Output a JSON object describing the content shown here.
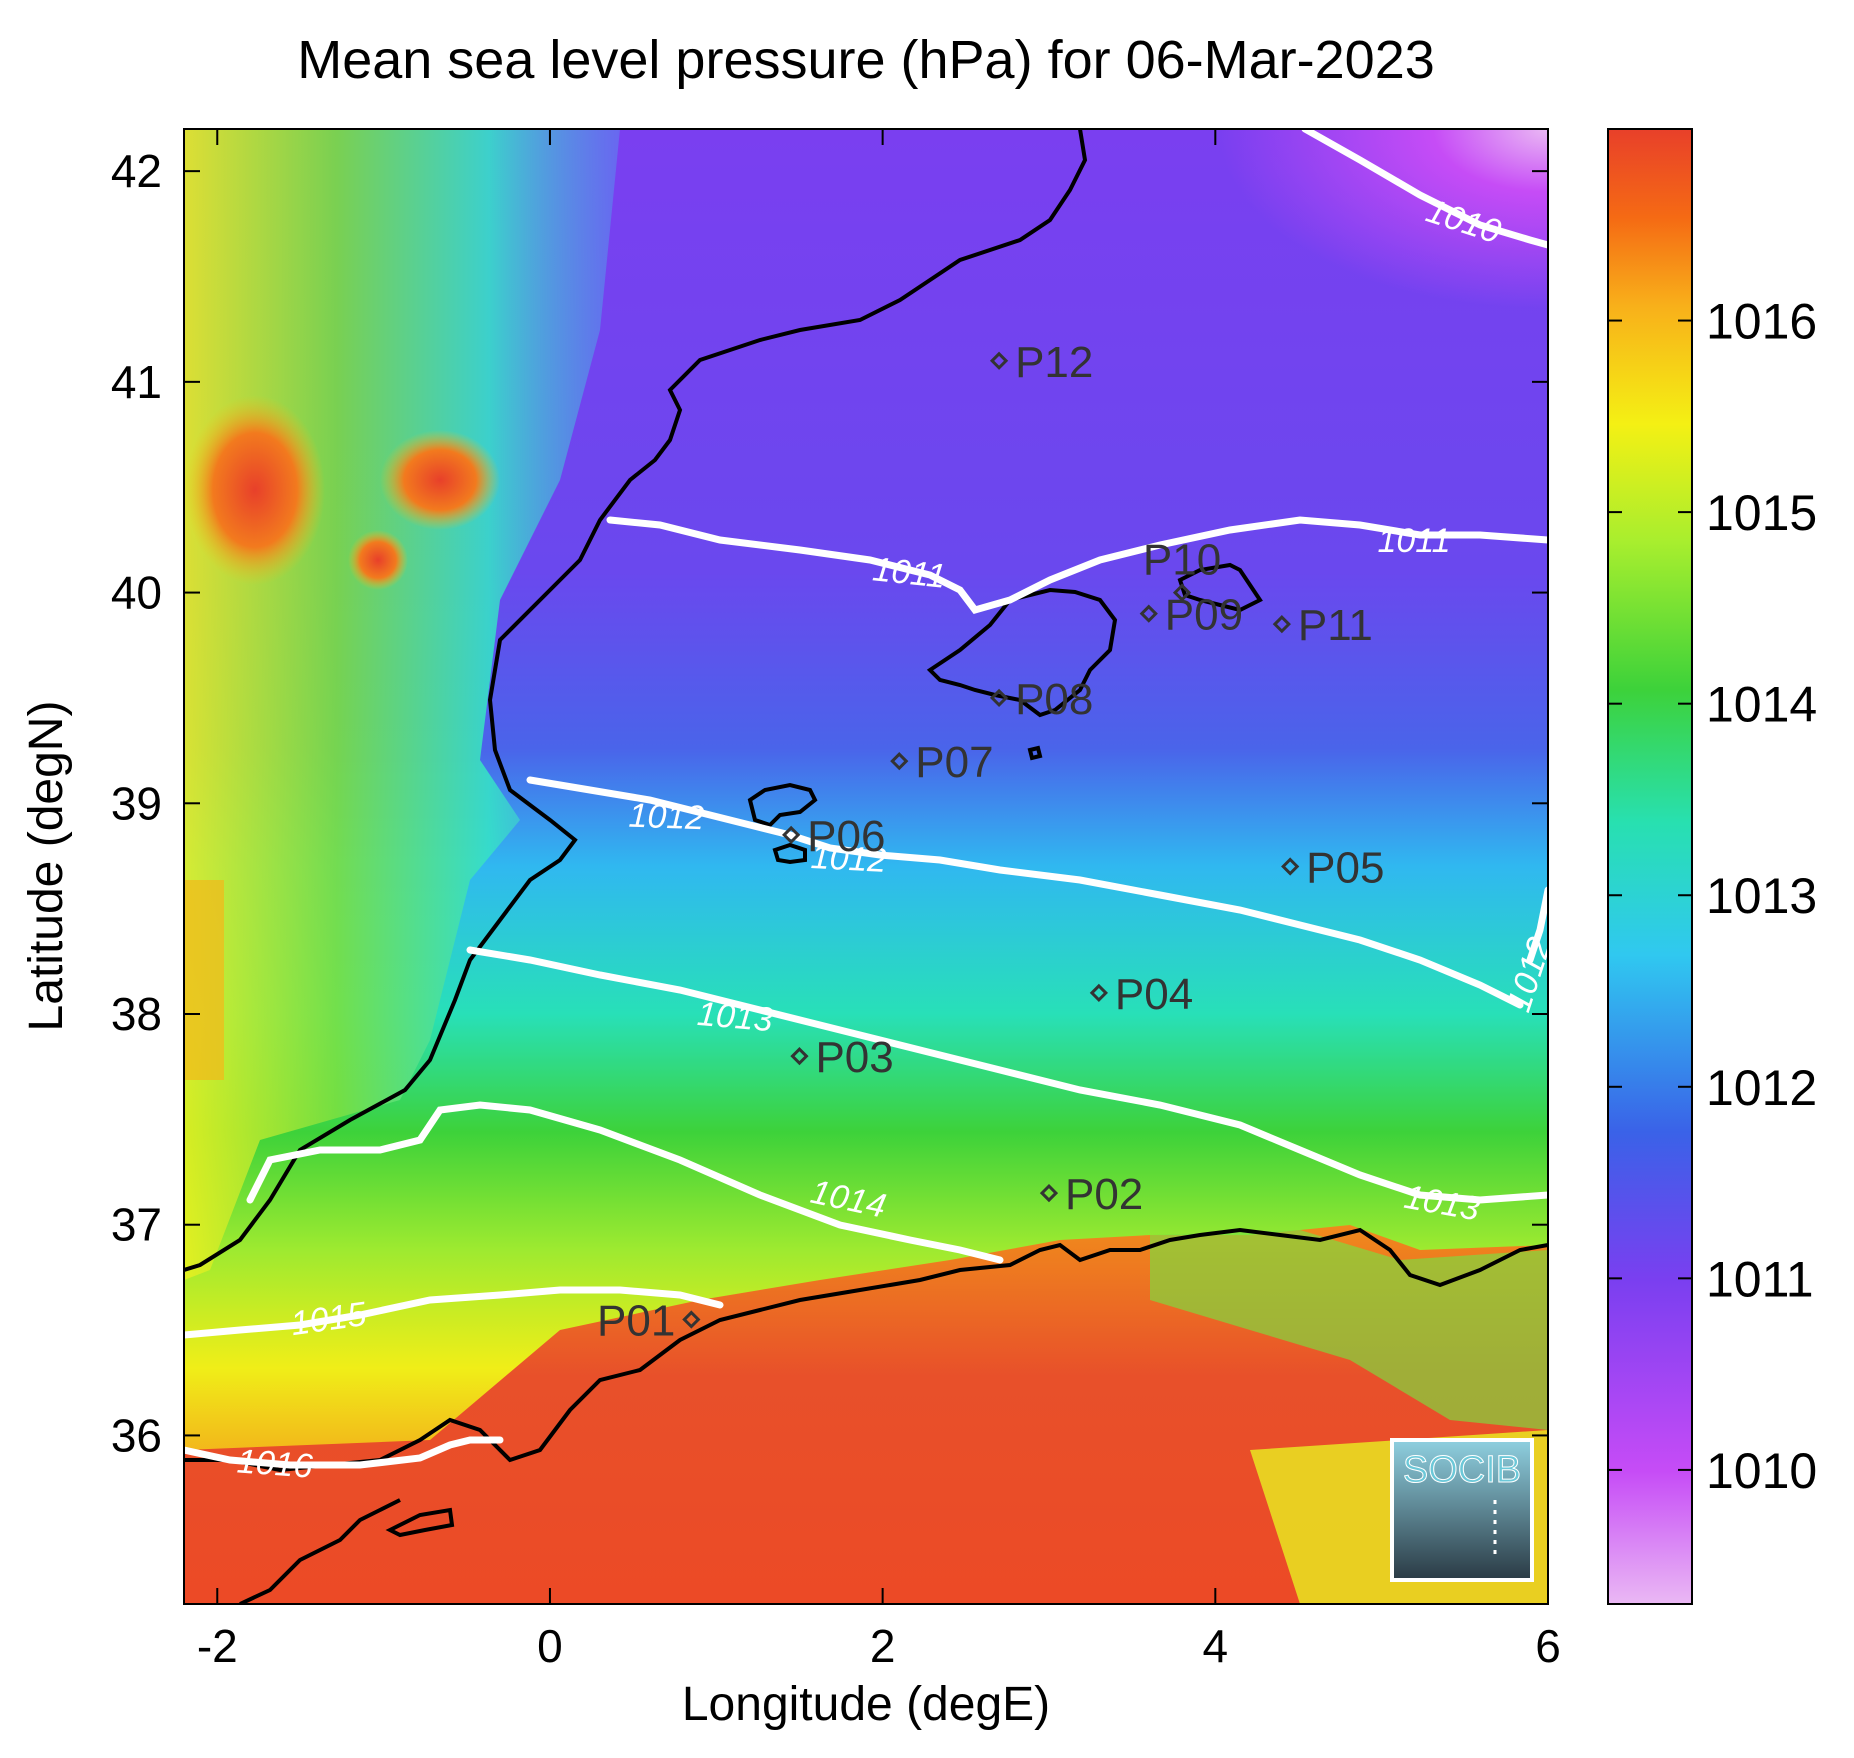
{
  "title": "Mean sea level pressure (hPa) for 06-Mar-2023",
  "xlabel": "Longitude (degE)",
  "ylabel": "Latitude (degN)",
  "x_ticks": [
    "-2",
    "0",
    "2",
    "4",
    "6"
  ],
  "y_ticks": [
    "36",
    "37",
    "38",
    "39",
    "40",
    "41",
    "42"
  ],
  "colorbar": {
    "ticks": [
      "1010",
      "1011",
      "1012",
      "1013",
      "1014",
      "1015",
      "1016"
    ],
    "range": [
      1009.3,
      1017.0
    ],
    "colors": [
      "#eab8f4",
      "#c64cf6",
      "#7a3ff0",
      "#3a62e8",
      "#30c8f0",
      "#28e0b0",
      "#3dd23a",
      "#a8ee2e",
      "#f4f014",
      "#f8b01a",
      "#f56a14",
      "#e8402a"
    ]
  },
  "logo": "SOCIB",
  "chart_data": {
    "type": "map-contour",
    "variable": "Mean sea level pressure",
    "unit": "hPa",
    "date": "06-Mar-2023",
    "lon_range": [
      -2.2,
      6.0
    ],
    "lat_range": [
      35.2,
      42.2
    ],
    "stations": [
      {
        "name": "P01",
        "lon": 0.85,
        "lat": 36.55
      },
      {
        "name": "P02",
        "lon": 3.0,
        "lat": 37.15
      },
      {
        "name": "P03",
        "lon": 1.5,
        "lat": 37.8
      },
      {
        "name": "P04",
        "lon": 3.3,
        "lat": 38.1
      },
      {
        "name": "P05",
        "lon": 4.45,
        "lat": 38.7
      },
      {
        "name": "P06",
        "lon": 1.45,
        "lat": 38.85
      },
      {
        "name": "P07",
        "lon": 2.1,
        "lat": 39.2
      },
      {
        "name": "P08",
        "lon": 2.7,
        "lat": 39.5
      },
      {
        "name": "P09",
        "lon": 3.6,
        "lat": 39.9
      },
      {
        "name": "P10",
        "lon": 3.8,
        "lat": 40.0
      },
      {
        "name": "P11",
        "lon": 4.4,
        "lat": 39.85
      },
      {
        "name": "P12",
        "lon": 2.7,
        "lat": 41.1
      }
    ],
    "contours": [
      {
        "level": "1010",
        "label_lon": 4.95,
        "label_lat": 41.85
      },
      {
        "level": "1011",
        "label_lon": 2.15,
        "label_lat": 40.05
      },
      {
        "level": "1011",
        "label_lon": 5.3,
        "label_lat": 40.25
      },
      {
        "level": "1012",
        "label_lon": 0.7,
        "label_lat": 38.95
      },
      {
        "level": "1012",
        "label_lon": 1.8,
        "label_lat": 38.75
      },
      {
        "level": "1012",
        "label_lon": 5.85,
        "label_lat": 38.2
      },
      {
        "level": "1013",
        "label_lon": 1.15,
        "label_lat": 37.95
      },
      {
        "level": "1013",
        "label_lon": 5.3,
        "label_lat": 36.95
      },
      {
        "level": "1014",
        "label_lon": 1.8,
        "label_lat": 37.05
      },
      {
        "level": "1015",
        "label_lon": -1.15,
        "label_lat": 36.55
      },
      {
        "level": "1016",
        "label_lon": -1.65,
        "label_lat": 35.85
      }
    ]
  }
}
